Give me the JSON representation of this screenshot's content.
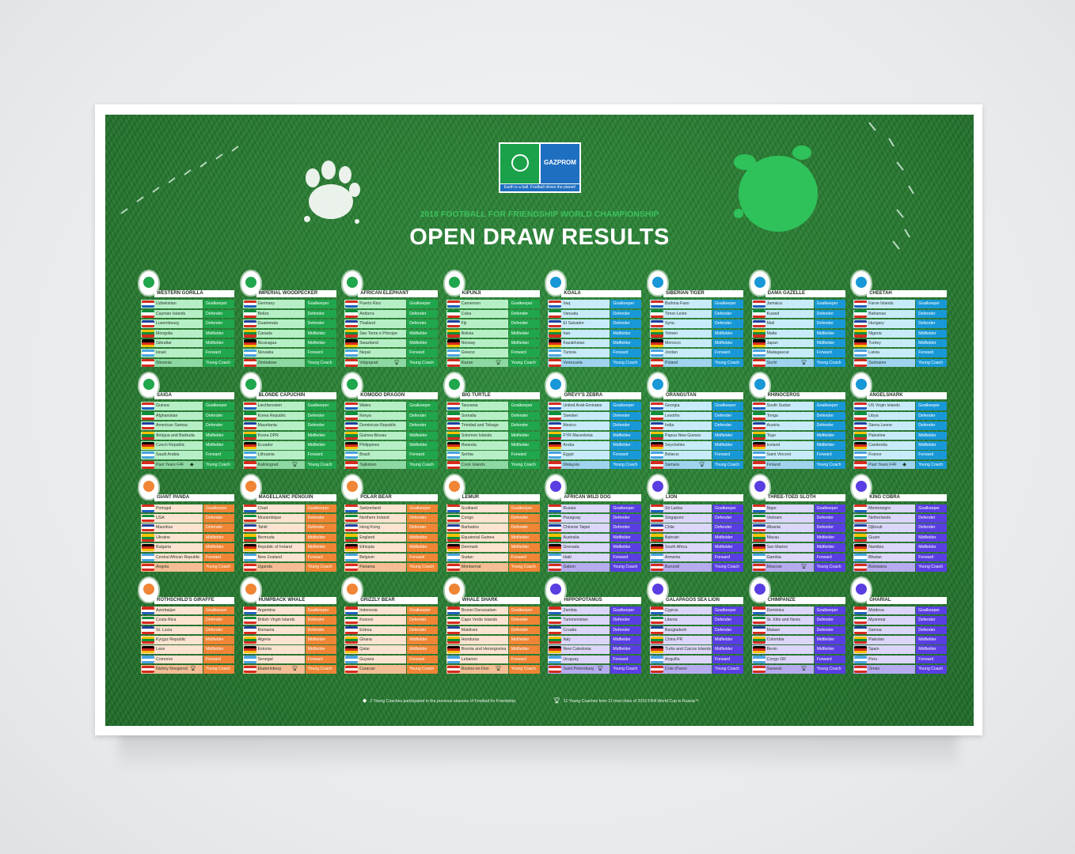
{
  "header": {
    "logo_left_text": "FOOTBALL FOR FRIENDSHIP",
    "logo_right_text": "GAZPROM",
    "logo_caption": "Earth is a ball. Football drives the planet!",
    "subtitle": "2018 FOOTBALL FOR FRIENDSHIP WORLD CHAMPIONSHIP",
    "title": "OPEN DRAW RESULTS"
  },
  "themes": {
    "green": {
      "dark": "#20a64c",
      "light": "#b6efc6",
      "coach": "#8ed9a3"
    },
    "blue": {
      "dark": "#1898d6",
      "light": "#c8ebf9",
      "coach": "#9fd3ee"
    },
    "orange": {
      "dark": "#ef8535",
      "light": "#fde3d1",
      "coach": "#f4bd94"
    },
    "purple": {
      "dark": "#5a3ee2",
      "light": "#dcd6fa",
      "coach": "#b7abf0"
    }
  },
  "icons": {
    "trophy": "trophy-icon",
    "diamond": "diamond-icon",
    "star": "star-icon"
  },
  "teams": [
    {
      "name": "WESTERN GORILLA",
      "theme": "green",
      "players": [
        [
          "Uzbekistan",
          "Goalkeeper"
        ],
        [
          "Cayman Islands",
          "Defender"
        ],
        [
          "Luxembourg",
          "Defender"
        ],
        [
          "Mongolia",
          "Midfielder"
        ],
        [
          "Gibraltar",
          "Midfielder"
        ],
        [
          "Israel",
          "Forward"
        ],
        [
          "Slovenia",
          "Young Coach"
        ]
      ]
    },
    {
      "name": "IMPERIAL WOODPECKER",
      "theme": "green",
      "players": [
        [
          "Germany",
          "Goalkeeper"
        ],
        [
          "Belize",
          "Defender"
        ],
        [
          "Guatemala",
          "Defender"
        ],
        [
          "Canada",
          "Midfielder"
        ],
        [
          "Nicaragua",
          "Midfielder"
        ],
        [
          "Slovakia",
          "Forward"
        ],
        [
          "Zimbabwe",
          "Young Coach"
        ]
      ]
    },
    {
      "name": "AFRICAN ELEPHANT",
      "theme": "green",
      "players": [
        [
          "Puerto Rico",
          "Goalkeeper"
        ],
        [
          "Andorra",
          "Defender"
        ],
        [
          "Thailand",
          "Defender"
        ],
        [
          "Sao Tome e Principe",
          "Midfielder"
        ],
        [
          "Swaziland",
          "Midfielder"
        ],
        [
          "Nepal",
          "Forward"
        ],
        [
          "Volgograd",
          "Young Coach",
          "trophy"
        ]
      ]
    },
    {
      "name": "KIPUNJI",
      "theme": "green",
      "players": [
        [
          "Cameroon",
          "Goalkeeper"
        ],
        [
          "Cuba",
          "Defender"
        ],
        [
          "Fiji",
          "Defender"
        ],
        [
          "Bolivia",
          "Midfielder"
        ],
        [
          "Norway",
          "Midfielder"
        ],
        [
          "Greece",
          "Forward"
        ],
        [
          "Kazan",
          "Young Coach",
          "trophy"
        ]
      ]
    },
    {
      "name": "KOALA",
      "theme": "blue",
      "players": [
        [
          "Iraq",
          "Goalkeeper"
        ],
        [
          "Vanuatu",
          "Defender"
        ],
        [
          "El Salvador",
          "Defender"
        ],
        [
          "Iran",
          "Midfielder"
        ],
        [
          "Kazakhstan",
          "Midfielder"
        ],
        [
          "Tunisia",
          "Forward"
        ],
        [
          "Venezuela",
          "Young Coach"
        ]
      ]
    },
    {
      "name": "SIBERIAN TIGER",
      "theme": "blue",
      "players": [
        [
          "Burkina Faso",
          "Goalkeeper"
        ],
        [
          "Timor-Leste",
          "Defender"
        ],
        [
          "Syria",
          "Defender"
        ],
        [
          "Yemen",
          "Midfielder"
        ],
        [
          "Morocco",
          "Midfielder"
        ],
        [
          "Jordan",
          "Forward"
        ],
        [
          "Poland",
          "Young Coach"
        ]
      ]
    },
    {
      "name": "DAMA GAZELLE",
      "theme": "blue",
      "players": [
        [
          "Jamaica",
          "Goalkeeper"
        ],
        [
          "Kuwait",
          "Defender"
        ],
        [
          "Mali",
          "Defender"
        ],
        [
          "Malta",
          "Midfielder"
        ],
        [
          "Japan",
          "Midfielder"
        ],
        [
          "Madagascar",
          "Forward"
        ],
        [
          "Sochi",
          "Young Coach",
          "trophy"
        ]
      ]
    },
    {
      "name": "CHEETAH",
      "theme": "blue",
      "players": [
        [
          "Faroe Islands",
          "Goalkeeper"
        ],
        [
          "Bahamas",
          "Defender"
        ],
        [
          "Hungary",
          "Defender"
        ],
        [
          "Nigeria",
          "Midfielder"
        ],
        [
          "Turkey",
          "Midfielder"
        ],
        [
          "Latvia",
          "Forward"
        ],
        [
          "Suriname",
          "Young Coach"
        ]
      ]
    },
    {
      "name": "SAIGA",
      "theme": "green",
      "players": [
        [
          "Guinea",
          "Goalkeeper"
        ],
        [
          "Afghanistan",
          "Defender"
        ],
        [
          "American Samoa",
          "Defender"
        ],
        [
          "Antigua and Barbuda",
          "Midfielder"
        ],
        [
          "Czech Republic",
          "Midfielder"
        ],
        [
          "Saudi Arabia",
          "Forward"
        ],
        [
          "Past Years F4F",
          "Young Coach",
          "diamond"
        ]
      ]
    },
    {
      "name": "BLONDE CAPUCHIN",
      "theme": "green",
      "players": [
        [
          "Liechtenstein",
          "Goalkeeper"
        ],
        [
          "Korea Republic",
          "Defender"
        ],
        [
          "Mauritania",
          "Defender"
        ],
        [
          "Korea DPR",
          "Midfielder"
        ],
        [
          "Ecuador",
          "Midfielder"
        ],
        [
          "Lithuania",
          "Forward"
        ],
        [
          "Kaliningrad",
          "Young Coach",
          "trophy"
        ]
      ]
    },
    {
      "name": "KOMODO DRAGON",
      "theme": "green",
      "players": [
        [
          "Wales",
          "Goalkeeper"
        ],
        [
          "Kenya",
          "Defender"
        ],
        [
          "Dominican Republic",
          "Defender"
        ],
        [
          "Guinea-Bissau",
          "Midfielder"
        ],
        [
          "Philippines",
          "Midfielder"
        ],
        [
          "Brazil",
          "Forward"
        ],
        [
          "Tajikistan",
          "Young Coach"
        ]
      ]
    },
    {
      "name": "BIG TURTLE",
      "theme": "green",
      "players": [
        [
          "Tanzania",
          "Goalkeeper"
        ],
        [
          "Somalia",
          "Defender"
        ],
        [
          "Trinidad and Tobago",
          "Defender"
        ],
        [
          "Solomon Islands",
          "Midfielder"
        ],
        [
          "Rwanda",
          "Midfielder"
        ],
        [
          "Serbia",
          "Forward"
        ],
        [
          "Cook Islands",
          "Young Coach"
        ]
      ]
    },
    {
      "name": "GRÉVY'S ZEBRA",
      "theme": "blue",
      "players": [
        [
          "United Arab Emirates",
          "Goalkeeper"
        ],
        [
          "Sweden",
          "Defender"
        ],
        [
          "Mexico",
          "Defender"
        ],
        [
          "FYR Macedonia",
          "Midfielder"
        ],
        [
          "Aruba",
          "Midfielder"
        ],
        [
          "Egypt",
          "Forward"
        ],
        [
          "Malaysia",
          "Young Coach"
        ]
      ]
    },
    {
      "name": "ORANGUTAN",
      "theme": "blue",
      "players": [
        [
          "Georgia",
          "Goalkeeper"
        ],
        [
          "Lesotho",
          "Defender"
        ],
        [
          "India",
          "Defender"
        ],
        [
          "Papua New Guinea",
          "Midfielder"
        ],
        [
          "Seychelles",
          "Midfielder"
        ],
        [
          "Belarus",
          "Forward"
        ],
        [
          "Samara",
          "Young Coach",
          "trophy"
        ]
      ]
    },
    {
      "name": "RHINOCEROS",
      "theme": "blue",
      "players": [
        [
          "South Sudan",
          "Goalkeeper"
        ],
        [
          "Tonga",
          "Defender"
        ],
        [
          "Austria",
          "Defender"
        ],
        [
          "Togo",
          "Midfielder"
        ],
        [
          "Iceland",
          "Midfielder"
        ],
        [
          "Saint Vincent",
          "Forward"
        ],
        [
          "Finland",
          "Young Coach"
        ]
      ]
    },
    {
      "name": "ANGELSHARK",
      "theme": "blue",
      "players": [
        [
          "US Virgin Islands",
          "Goalkeeper"
        ],
        [
          "Libya",
          "Defender"
        ],
        [
          "Sierra Leone",
          "Defender"
        ],
        [
          "Palestine",
          "Midfielder"
        ],
        [
          "Cambodia",
          "Midfielder"
        ],
        [
          "France",
          "Forward"
        ],
        [
          "Past Years F4F",
          "Young Coach",
          "diamond"
        ]
      ]
    },
    {
      "name": "GIANT PANDA",
      "theme": "orange",
      "players": [
        [
          "Portugal",
          "Goalkeeper"
        ],
        [
          "USA",
          "Defender"
        ],
        [
          "Mauritius",
          "Defender"
        ],
        [
          "Ukraine",
          "Midfielder"
        ],
        [
          "Bulgaria",
          "Midfielder"
        ],
        [
          "Central African Republic",
          "Forward"
        ],
        [
          "Angola",
          "Young Coach"
        ]
      ]
    },
    {
      "name": "MAGELLANIC PENGUIN",
      "theme": "orange",
      "players": [
        [
          "Chad",
          "Goalkeeper"
        ],
        [
          "Mozambique",
          "Defender"
        ],
        [
          "Tahiti",
          "Defender"
        ],
        [
          "Bermuda",
          "Midfielder"
        ],
        [
          "Republic of Ireland",
          "Midfielder"
        ],
        [
          "New Zealand",
          "Forward"
        ],
        [
          "Uganda",
          "Young Coach"
        ]
      ]
    },
    {
      "name": "POLAR BEAR",
      "theme": "orange",
      "players": [
        [
          "Switzerland",
          "Goalkeeper"
        ],
        [
          "Northern Ireland",
          "Defender"
        ],
        [
          "Hong Kong",
          "Defender"
        ],
        [
          "England",
          "Midfielder"
        ],
        [
          "Ethiopia",
          "Midfielder"
        ],
        [
          "Belgium",
          "Forward"
        ],
        [
          "Panama",
          "Young Coach"
        ]
      ]
    },
    {
      "name": "LEMUR",
      "theme": "orange",
      "players": [
        [
          "Scotland",
          "Goalkeeper"
        ],
        [
          "Congo",
          "Defender"
        ],
        [
          "Barbados",
          "Defender"
        ],
        [
          "Equatorial Guinea",
          "Midfielder"
        ],
        [
          "Denmark",
          "Midfielder"
        ],
        [
          "Sudan",
          "Forward"
        ],
        [
          "Montserrat",
          "Young Coach"
        ]
      ]
    },
    {
      "name": "AFRICAN WILD DOG",
      "theme": "purple",
      "players": [
        [
          "Russia",
          "Goalkeeper"
        ],
        [
          "Paraguay",
          "Defender"
        ],
        [
          "Chinese Taipei",
          "Defender"
        ],
        [
          "Australia",
          "Midfielder"
        ],
        [
          "Grenada",
          "Midfielder"
        ],
        [
          "Haiti",
          "Forward"
        ],
        [
          "Gabon",
          "Young Coach"
        ]
      ]
    },
    {
      "name": "LION",
      "theme": "purple",
      "players": [
        [
          "Sri Lanka",
          "Goalkeeper"
        ],
        [
          "Singapore",
          "Defender"
        ],
        [
          "Chile",
          "Defender"
        ],
        [
          "Bahrain",
          "Midfielder"
        ],
        [
          "South Africa",
          "Midfielder"
        ],
        [
          "Armenia",
          "Forward"
        ],
        [
          "Burundi",
          "Young Coach"
        ]
      ]
    },
    {
      "name": "THREE-TOED SLOTH",
      "theme": "purple",
      "players": [
        [
          "Niger",
          "Goalkeeper"
        ],
        [
          "Vietnam",
          "Defender"
        ],
        [
          "Albania",
          "Defender"
        ],
        [
          "Macau",
          "Midfielder"
        ],
        [
          "San Marino",
          "Midfielder"
        ],
        [
          "Gambia",
          "Forward"
        ],
        [
          "Moscow",
          "Young Coach",
          "trophy"
        ]
      ]
    },
    {
      "name": "KING COBRA",
      "theme": "purple",
      "players": [
        [
          "Montenegro",
          "Goalkeeper"
        ],
        [
          "Netherlands",
          "Defender"
        ],
        [
          "Djibouti",
          "Defender"
        ],
        [
          "Guam",
          "Midfielder"
        ],
        [
          "Namibia",
          "Midfielder"
        ],
        [
          "Bhutan",
          "Forward"
        ],
        [
          "Botswana",
          "Young Coach"
        ]
      ]
    },
    {
      "name": "ROTHSCHILD'S GIRAFFE",
      "theme": "orange",
      "players": [
        [
          "Azerbaijan",
          "Goalkeeper"
        ],
        [
          "Costa Rica",
          "Defender"
        ],
        [
          "St. Lucia",
          "Defender"
        ],
        [
          "Kyrgyz Republic",
          "Midfielder"
        ],
        [
          "Laos",
          "Midfielder"
        ],
        [
          "Comoros",
          "Forward"
        ],
        [
          "Nizhny Novgorod",
          "Young Coach",
          "trophy"
        ]
      ]
    },
    {
      "name": "HUMPBACK WHALE",
      "theme": "orange",
      "players": [
        [
          "Argentina",
          "Goalkeeper"
        ],
        [
          "British Virgin Islands",
          "Defender"
        ],
        [
          "Romania",
          "Defender"
        ],
        [
          "Algeria",
          "Midfielder"
        ],
        [
          "Estonia",
          "Midfielder"
        ],
        [
          "Senegal",
          "Forward"
        ],
        [
          "Ekaterinburg",
          "Young Coach",
          "trophy"
        ]
      ]
    },
    {
      "name": "GRIZZLY BEAR",
      "theme": "orange",
      "players": [
        [
          "Indonesia",
          "Goalkeeper"
        ],
        [
          "Kosovo",
          "Defender"
        ],
        [
          "Eritrea",
          "Defender"
        ],
        [
          "Ghana",
          "Midfielder"
        ],
        [
          "Qatar",
          "Midfielder"
        ],
        [
          "Guyana",
          "Forward"
        ],
        [
          "Curacao",
          "Young Coach"
        ]
      ]
    },
    {
      "name": "WHALE SHARK",
      "theme": "orange",
      "players": [
        [
          "Brunei Darussalam",
          "Goalkeeper"
        ],
        [
          "Cape Verde Islands",
          "Defender"
        ],
        [
          "Maldives",
          "Defender"
        ],
        [
          "Honduras",
          "Midfielder"
        ],
        [
          "Bosnia and Herzegovina",
          "Midfielder"
        ],
        [
          "Lebanon",
          "Forward"
        ],
        [
          "Rostov-on-Don",
          "Young Coach",
          "trophy"
        ]
      ]
    },
    {
      "name": "HIPPOPOTAMUS",
      "theme": "purple",
      "players": [
        [
          "Zambia",
          "Goalkeeper"
        ],
        [
          "Turkmenistan",
          "Defender"
        ],
        [
          "Croatia",
          "Defender"
        ],
        [
          "Italy",
          "Midfielder"
        ],
        [
          "New Caledonia",
          "Midfielder"
        ],
        [
          "Uruguay",
          "Forward"
        ],
        [
          "Saint Petersburg",
          "Young Coach",
          "trophy"
        ]
      ]
    },
    {
      "name": "GALAPAGOS SEA LION",
      "theme": "purple",
      "players": [
        [
          "Cyprus",
          "Goalkeeper"
        ],
        [
          "Liberia",
          "Defender"
        ],
        [
          "Bangladesh",
          "Defender"
        ],
        [
          "China PR",
          "Midfielder"
        ],
        [
          "Turks and Caicos Islands",
          "Midfielder"
        ],
        [
          "Anguilla",
          "Forward"
        ],
        [
          "Cote d'Ivore",
          "Young Coach"
        ]
      ]
    },
    {
      "name": "CHIMPANZE",
      "theme": "purple",
      "players": [
        [
          "Dominica",
          "Goalkeeper"
        ],
        [
          "St. Kitts and Nevis",
          "Defender"
        ],
        [
          "Malawi",
          "Defender"
        ],
        [
          "Colombia",
          "Midfielder"
        ],
        [
          "Benin",
          "Midfielder"
        ],
        [
          "Congo DR",
          "Forward"
        ],
        [
          "Saransk",
          "Young Coach",
          "trophy"
        ]
      ]
    },
    {
      "name": "GHARIAL",
      "theme": "purple",
      "players": [
        [
          "Moldova",
          "Goalkeeper"
        ],
        [
          "Myanmar",
          "Defender"
        ],
        [
          "Samoa",
          "Defender"
        ],
        [
          "Pakistan",
          "Midfielder"
        ],
        [
          "Spain",
          "Midfielder"
        ],
        [
          "Peru",
          "Forward"
        ],
        [
          "Oman",
          "Young Coach"
        ]
      ]
    }
  ],
  "footer": {
    "note_diamond": "2 Young Coaches participated in the previous seasons of Football for Friendship",
    "note_trophy": "11 Young Coaches from 11 host cities of 2018 FIFA World Cup in Russia™"
  }
}
